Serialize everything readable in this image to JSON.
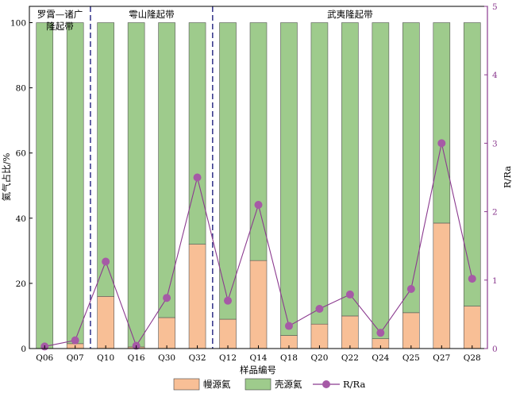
{
  "chart_data": {
    "type": "bar",
    "stacked": true,
    "categories": [
      "Q06",
      "Q07",
      "Q10",
      "Q16",
      "Q30",
      "Q32",
      "Q12",
      "Q14",
      "Q18",
      "Q20",
      "Q22",
      "Q24",
      "Q25",
      "Q27",
      "Q28"
    ],
    "series": [
      {
        "name": "幔源氦",
        "values": [
          0,
          1.5,
          16,
          0.5,
          9.5,
          32,
          9,
          27,
          4,
          7.5,
          10,
          3,
          11,
          38.5,
          13
        ],
        "color": "#f8bf96"
      },
      {
        "name": "壳源氦",
        "values": [
          100,
          98.5,
          84,
          99.5,
          90.5,
          68,
          91,
          73,
          96,
          92.5,
          90,
          97,
          89,
          61.5,
          87
        ],
        "color": "#9ecb8c"
      }
    ],
    "line_series": {
      "name": "R/Ra",
      "axis": "right",
      "values": [
        0.03,
        0.12,
        1.27,
        0.04,
        0.74,
        2.5,
        0.7,
        2.1,
        0.33,
        0.58,
        0.79,
        0.23,
        0.87,
        3.0,
        1.02
      ],
      "color": "#8b3a8f",
      "marker_color": "#a65aa6"
    },
    "xlabel": "样品编号",
    "ylabel": "氦气占比/%",
    "y2label": "R/Ra",
    "ylim": [
      0,
      105
    ],
    "y2lim": [
      0,
      5
    ],
    "yticks": [
      "0",
      "20",
      "40",
      "60",
      "80",
      "100"
    ],
    "y2ticks": [
      "0",
      "1",
      "2",
      "3",
      "4",
      "5"
    ],
    "regions": [
      {
        "label_line1": "罗霄—诸广",
        "label_line2": "隆起带"
      },
      {
        "label_line1": "雩山隆起带",
        "label_line2": ""
      },
      {
        "label_line1": "武夷隆起带",
        "label_line2": ""
      }
    ],
    "divider_color": "#3d3d8f",
    "legend_position": "bottom",
    "grid": false
  }
}
